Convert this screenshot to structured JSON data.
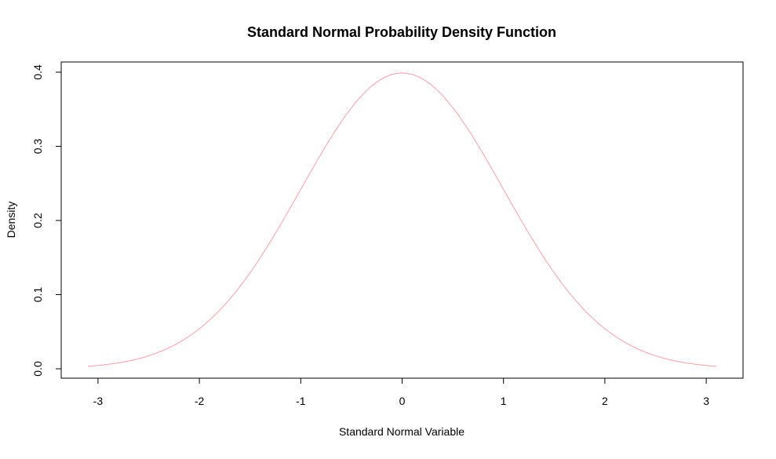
{
  "chart_data": {
    "type": "line",
    "title": "Standard Normal Probability Density Function",
    "xlabel": "Standard Normal Variable",
    "ylabel": "Density",
    "xlim": [
      -3.1,
      3.1
    ],
    "ylim": [
      0,
      0.4
    ],
    "x_ticks": [
      -3,
      -2,
      -1,
      0,
      1,
      2,
      3
    ],
    "y_ticks": [
      0.0,
      0.1,
      0.2,
      0.3,
      0.4
    ],
    "x_tick_labels": [
      "-3",
      "-2",
      "-1",
      "0",
      "1",
      "2",
      "3"
    ],
    "y_tick_labels": [
      "0.0",
      "0.1",
      "0.2",
      "0.3",
      "0.4"
    ],
    "grid": false,
    "line_color": "#ff9ea8",
    "series": [
      {
        "x": [
          -3.1,
          -2.9,
          -2.7,
          -2.5,
          -2.3,
          -2.1,
          -1.9,
          -1.7,
          -1.5,
          -1.3,
          -1.1,
          -0.9,
          -0.7,
          -0.5,
          -0.3,
          -0.1,
          0,
          0.1,
          0.3,
          0.5,
          0.7,
          0.9,
          1.1,
          1.3,
          1.5,
          1.7,
          1.9,
          2.1,
          2.3,
          2.5,
          2.7,
          2.9,
          3.1
        ],
        "y": [
          0.0033,
          0.006,
          0.0104,
          0.0175,
          0.0283,
          0.044,
          0.0656,
          0.094,
          0.1295,
          0.1714,
          0.2179,
          0.2661,
          0.3123,
          0.3521,
          0.3814,
          0.397,
          0.3989,
          0.397,
          0.3814,
          0.3521,
          0.3123,
          0.2661,
          0.2179,
          0.1714,
          0.1295,
          0.094,
          0.0656,
          0.044,
          0.0283,
          0.0175,
          0.0104,
          0.006,
          0.0033
        ]
      }
    ]
  }
}
